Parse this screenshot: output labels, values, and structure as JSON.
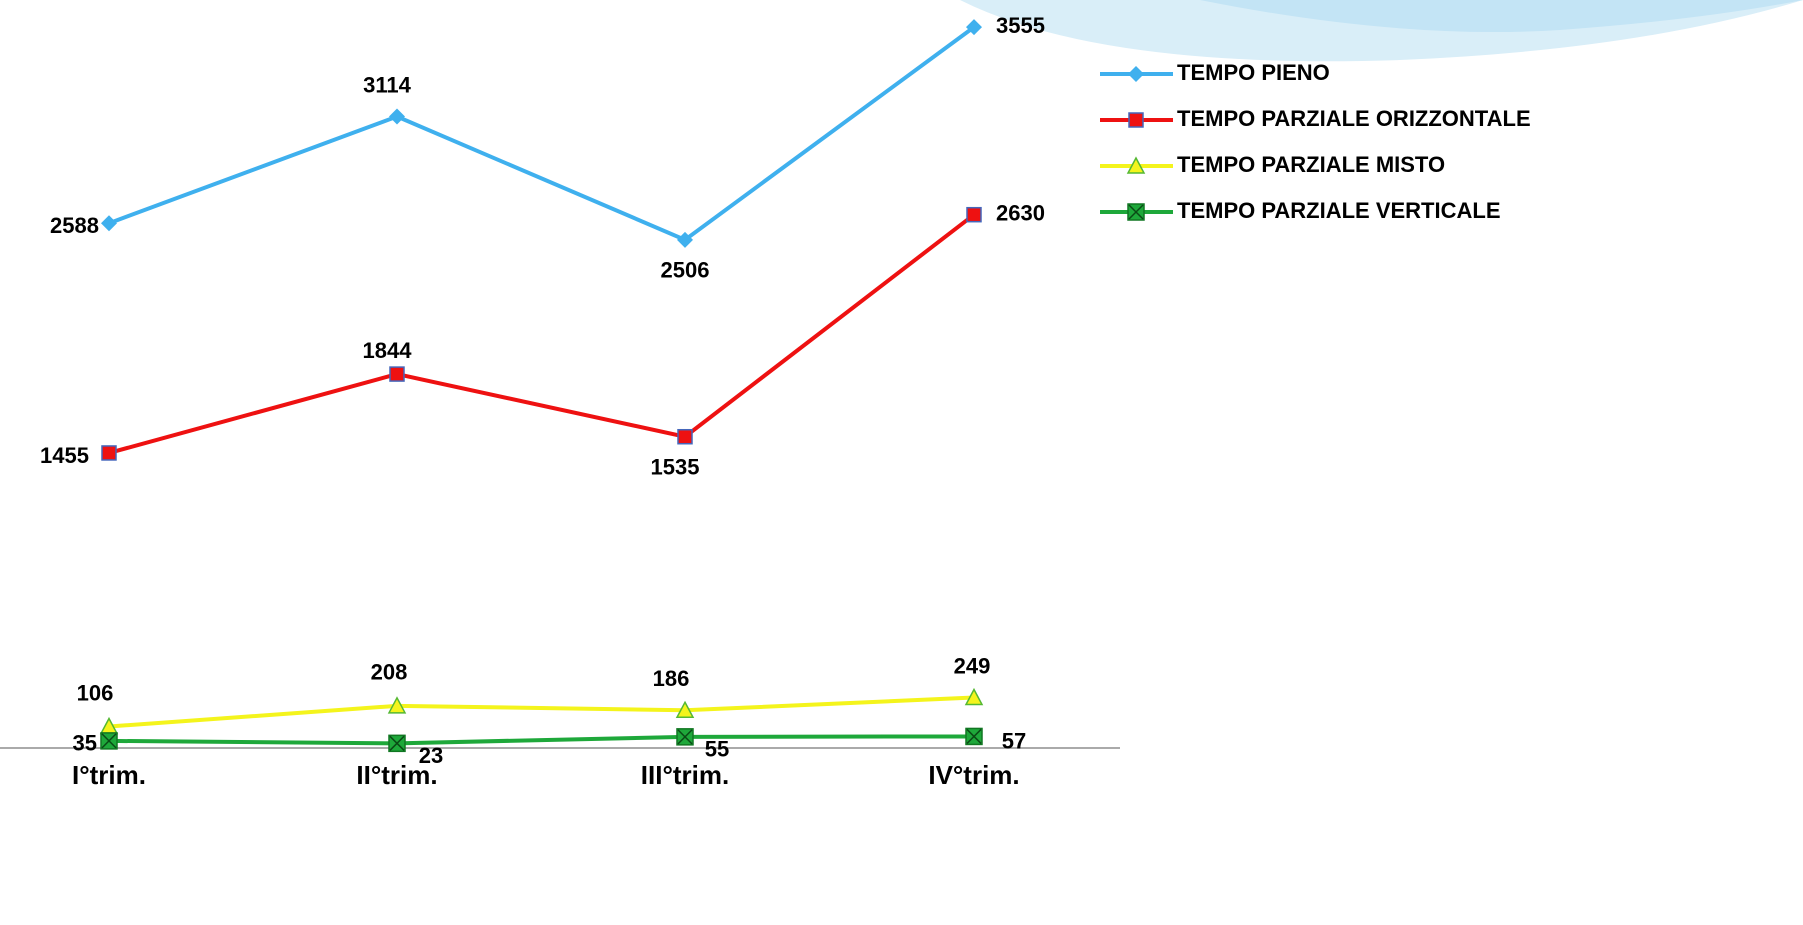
{
  "chart_data": {
    "type": "line",
    "categories": [
      "I°trim.",
      "II°trim.",
      "III°trim.",
      "IV°trim."
    ],
    "series": [
      {
        "name": "TEMPO PIENO",
        "color": "#3fb0ee",
        "marker": "diamond",
        "values": [
          2588,
          3114,
          2506,
          3555
        ]
      },
      {
        "name": "TEMPO PARZIALE ORIZZONTALE",
        "color": "#ee1111",
        "marker": "square",
        "values": [
          1455,
          1844,
          1535,
          2630
        ]
      },
      {
        "name": "TEMPO PARZIALE MISTO",
        "color": "#f4f41c",
        "marker": "triangle",
        "values": [
          106,
          208,
          186,
          249
        ]
      },
      {
        "name": "TEMPO PARZIALE VERTICALE",
        "color": "#1ea83a",
        "marker": "x-square",
        "values": [
          35,
          23,
          55,
          57
        ]
      }
    ],
    "ylim": [
      0,
      3600
    ],
    "legend": "right"
  }
}
